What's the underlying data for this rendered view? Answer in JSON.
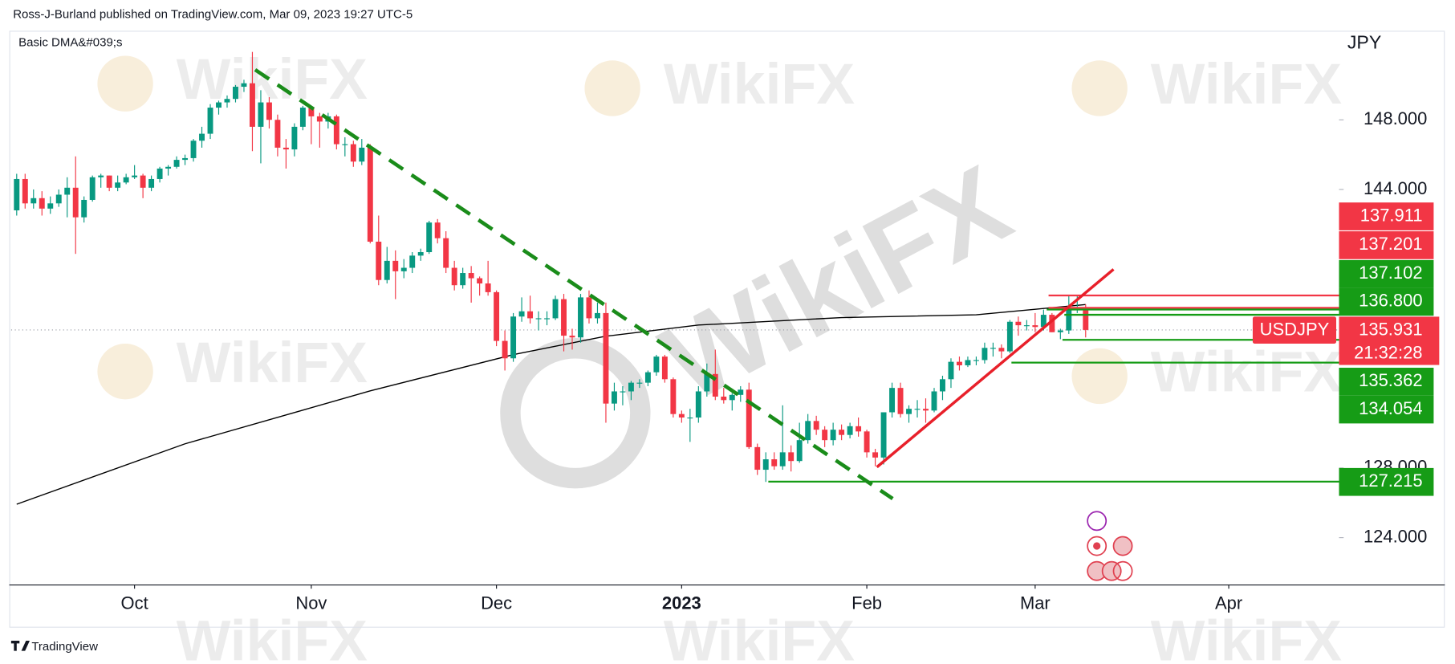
{
  "header": {
    "byline": "Ross-J-Burland published on TradingView.com, Mar 09, 2023 19:27 UTC-5"
  },
  "footer": {
    "brand": "TradingView"
  },
  "watermark": "WikiFX",
  "chart_data": {
    "type": "candlestick",
    "symbol": "USDJPY",
    "currency": "JPY",
    "up_color": "#089981",
    "down_color": "#f23645",
    "indicator": {
      "name": "Basic DMA&#039;s",
      "color": "#000000",
      "x": [
        0,
        20,
        42,
        59,
        70,
        81,
        98,
        114,
        127
      ],
      "values": [
        125.92,
        129.39,
        132.43,
        134.51,
        135.57,
        136.21,
        136.64,
        136.8,
        137.39
      ]
    },
    "xlim": [
      -0.66,
      157.1
    ],
    "xticks": [
      {
        "value": 14,
        "label": "Oct"
      },
      {
        "value": 35,
        "label": "Nov"
      },
      {
        "value": 57,
        "label": "Dec"
      },
      {
        "value": 79,
        "label": "2023"
      },
      {
        "value": 101,
        "label": "Feb"
      },
      {
        "value": 121,
        "label": "Mar"
      },
      {
        "value": 144,
        "label": "Apr"
      }
    ],
    "ylim": [
      121.28,
      153.01
    ],
    "yticks": [
      {
        "value": 148,
        "label": "148.000"
      },
      {
        "value": 144,
        "label": "144.000"
      },
      {
        "value": 128,
        "label": "128.000"
      },
      {
        "value": 124,
        "label": "124.000"
      }
    ],
    "last_price": 135.931,
    "countdown": "21:32:28",
    "price_tags": [
      {
        "value": 137.911,
        "color": "#f23645"
      },
      {
        "value": 137.201,
        "color": "#f23645"
      },
      {
        "value": 137.102,
        "color": "#169c16"
      },
      {
        "value": 136.8,
        "label": "136.800",
        "color": "#169c16"
      },
      {
        "value": 135.362,
        "color": "#169c16"
      },
      {
        "value": 134.054,
        "color": "#169c16"
      },
      {
        "value": 127.215,
        "color": "#169c16"
      }
    ],
    "ohlc": [
      [
        142.8,
        144.9,
        142.5,
        144.6
      ],
      [
        144.6,
        144.9,
        142.9,
        143.2
      ],
      [
        143.2,
        144.0,
        142.9,
        143.5
      ],
      [
        143.5,
        143.9,
        142.5,
        142.9
      ],
      [
        142.9,
        143.6,
        142.6,
        143.2
      ],
      [
        143.2,
        144.0,
        143.0,
        143.7
      ],
      [
        143.7,
        144.7,
        142.4,
        144.1
      ],
      [
        144.1,
        145.9,
        140.3,
        142.4
      ],
      [
        142.4,
        143.6,
        142.1,
        143.4
      ],
      [
        143.4,
        144.8,
        143.3,
        144.7
      ],
      [
        144.7,
        144.9,
        144.1,
        144.8
      ],
      [
        144.8,
        144.8,
        143.9,
        144.1
      ],
      [
        144.1,
        144.8,
        143.9,
        144.4
      ],
      [
        144.4,
        144.9,
        144.3,
        144.7
      ],
      [
        144.7,
        145.4,
        144.6,
        144.8
      ],
      [
        144.8,
        144.9,
        143.5,
        144.1
      ],
      [
        144.1,
        144.8,
        143.9,
        144.6
      ],
      [
        144.6,
        145.3,
        144.4,
        145.2
      ],
      [
        145.2,
        145.4,
        144.8,
        145.3
      ],
      [
        145.3,
        145.9,
        145.2,
        145.7
      ],
      [
        145.7,
        146.0,
        145.4,
        145.8
      ],
      [
        145.8,
        146.9,
        145.6,
        146.8
      ],
      [
        146.8,
        147.6,
        146.4,
        147.2
      ],
      [
        147.2,
        148.9,
        146.9,
        148.7
      ],
      [
        148.7,
        149.1,
        148.3,
        149.0
      ],
      [
        149.0,
        149.4,
        148.7,
        149.2
      ],
      [
        149.2,
        150.0,
        149.0,
        149.9
      ],
      [
        149.9,
        150.3,
        149.6,
        150.1
      ],
      [
        150.1,
        151.9,
        146.2,
        147.6
      ],
      [
        147.6,
        149.7,
        145.5,
        149.0
      ],
      [
        149.0,
        149.3,
        147.5,
        148.0
      ],
      [
        148.0,
        148.3,
        145.9,
        146.4
      ],
      [
        146.4,
        146.9,
        145.2,
        146.3
      ],
      [
        146.3,
        147.8,
        145.9,
        147.6
      ],
      [
        147.6,
        148.8,
        147.4,
        148.7
      ],
      [
        148.7,
        148.8,
        146.6,
        148.2
      ],
      [
        148.2,
        148.4,
        146.4,
        147.9
      ],
      [
        147.9,
        148.4,
        147.5,
        148.2
      ],
      [
        148.2,
        148.3,
        146.3,
        146.6
      ],
      [
        146.6,
        147.0,
        145.9,
        146.6
      ],
      [
        146.6,
        146.8,
        145.3,
        145.6
      ],
      [
        145.6,
        146.9,
        145.4,
        146.4
      ],
      [
        146.4,
        146.6,
        140.9,
        141.0
      ],
      [
        141.0,
        142.5,
        138.5,
        138.8
      ],
      [
        138.8,
        140.7,
        138.6,
        139.9
      ],
      [
        139.9,
        140.5,
        137.7,
        139.3
      ],
      [
        139.3,
        140.0,
        138.9,
        139.5
      ],
      [
        139.5,
        140.4,
        139.2,
        140.2
      ],
      [
        140.2,
        140.6,
        139.9,
        140.4
      ],
      [
        140.4,
        142.2,
        140.3,
        142.1
      ],
      [
        142.1,
        142.3,
        140.9,
        141.2
      ],
      [
        141.2,
        141.6,
        139.2,
        139.5
      ],
      [
        139.5,
        139.9,
        138.2,
        138.5
      ],
      [
        138.5,
        139.5,
        138.3,
        139.2
      ],
      [
        139.2,
        139.6,
        137.5,
        138.9
      ],
      [
        138.9,
        139.0,
        137.9,
        138.6
      ],
      [
        138.6,
        139.9,
        137.9,
        138.1
      ],
      [
        138.1,
        138.2,
        135.0,
        135.3
      ],
      [
        135.3,
        135.9,
        133.6,
        134.3
      ],
      [
        134.3,
        136.9,
        134.1,
        136.7
      ],
      [
        136.7,
        137.8,
        136.4,
        137.0
      ],
      [
        137.0,
        137.9,
        136.3,
        136.6
      ],
      [
        136.6,
        137.0,
        135.9,
        136.6
      ],
      [
        136.6,
        137.0,
        136.2,
        136.6
      ],
      [
        136.6,
        137.9,
        136.5,
        137.7
      ],
      [
        137.7,
        138.0,
        134.7,
        135.6
      ],
      [
        135.6,
        136.0,
        134.8,
        135.5
      ],
      [
        135.5,
        138.0,
        135.2,
        137.8
      ],
      [
        137.8,
        138.2,
        136.3,
        136.6
      ],
      [
        136.6,
        137.5,
        136.3,
        136.9
      ],
      [
        136.9,
        137.5,
        130.6,
        131.7
      ],
      [
        131.7,
        132.9,
        131.3,
        132.4
      ],
      [
        132.4,
        132.7,
        131.6,
        132.4
      ],
      [
        132.4,
        133.0,
        131.9,
        132.9
      ],
      [
        132.9,
        133.1,
        132.6,
        132.9
      ],
      [
        132.9,
        133.6,
        132.7,
        133.5
      ],
      [
        133.5,
        134.5,
        133.3,
        134.4
      ],
      [
        134.4,
        134.5,
        132.9,
        133.1
      ],
      [
        133.1,
        133.2,
        130.9,
        131.1
      ],
      [
        131.1,
        131.3,
        130.6,
        130.9
      ],
      [
        130.9,
        131.4,
        129.5,
        130.9
      ],
      [
        130.9,
        132.7,
        130.6,
        132.4
      ],
      [
        132.4,
        134.0,
        132.1,
        133.4
      ],
      [
        133.4,
        134.8,
        131.9,
        132.1
      ],
      [
        132.1,
        132.6,
        131.7,
        131.9
      ],
      [
        131.9,
        132.3,
        131.3,
        132.2
      ],
      [
        132.2,
        132.7,
        131.8,
        132.5
      ],
      [
        132.5,
        132.9,
        129.1,
        129.2
      ],
      [
        129.2,
        129.4,
        127.6,
        127.9
      ],
      [
        127.9,
        128.9,
        127.2,
        128.5
      ],
      [
        128.5,
        128.9,
        127.9,
        128.1
      ],
      [
        128.1,
        131.6,
        127.9,
        128.9
      ],
      [
        128.9,
        129.3,
        127.8,
        128.4
      ],
      [
        128.4,
        130.6,
        128.3,
        129.6
      ],
      [
        129.6,
        131.1,
        129.4,
        130.7
      ],
      [
        130.7,
        131.0,
        129.9,
        130.2
      ],
      [
        130.2,
        130.4,
        129.2,
        129.6
      ],
      [
        129.6,
        130.6,
        129.3,
        130.2
      ],
      [
        130.2,
        130.5,
        129.6,
        129.9
      ],
      [
        129.9,
        130.6,
        129.7,
        130.4
      ],
      [
        130.4,
        130.9,
        129.8,
        130.1
      ],
      [
        130.1,
        130.2,
        128.6,
        128.9
      ],
      [
        128.9,
        129.1,
        128.1,
        128.6
      ],
      [
        128.6,
        131.2,
        128.2,
        131.2
      ],
      [
        131.2,
        132.9,
        130.9,
        132.6
      ],
      [
        132.6,
        132.9,
        130.9,
        131.1
      ],
      [
        131.1,
        131.6,
        130.6,
        131.4
      ],
      [
        131.4,
        131.9,
        130.9,
        131.4
      ],
      [
        131.4,
        132.0,
        130.6,
        131.3
      ],
      [
        131.3,
        132.6,
        131.2,
        132.4
      ],
      [
        132.4,
        133.3,
        131.9,
        133.1
      ],
      [
        133.1,
        134.3,
        132.6,
        134.1
      ],
      [
        134.1,
        134.4,
        133.6,
        133.9
      ],
      [
        133.9,
        134.4,
        133.8,
        134.2
      ],
      [
        134.2,
        134.4,
        133.9,
        134.2
      ],
      [
        134.2,
        135.2,
        134.0,
        134.9
      ],
      [
        134.9,
        135.2,
        134.4,
        134.9
      ],
      [
        134.9,
        135.1,
        134.3,
        134.7
      ],
      [
        134.7,
        136.5,
        134.6,
        136.4
      ],
      [
        136.4,
        136.7,
        135.6,
        136.2
      ],
      [
        136.2,
        136.5,
        135.9,
        136.2
      ],
      [
        136.2,
        136.9,
        135.8,
        136.1
      ],
      [
        136.1,
        137.1,
        135.9,
        136.8
      ],
      [
        136.8,
        136.9,
        135.8,
        135.8
      ],
      [
        135.8,
        136.0,
        135.4,
        135.9
      ],
      [
        135.9,
        137.9,
        135.7,
        137.2
      ],
      [
        137.2,
        137.9,
        136.9,
        137.2
      ],
      [
        137.2,
        137.4,
        135.5,
        135.931
      ]
    ]
  }
}
